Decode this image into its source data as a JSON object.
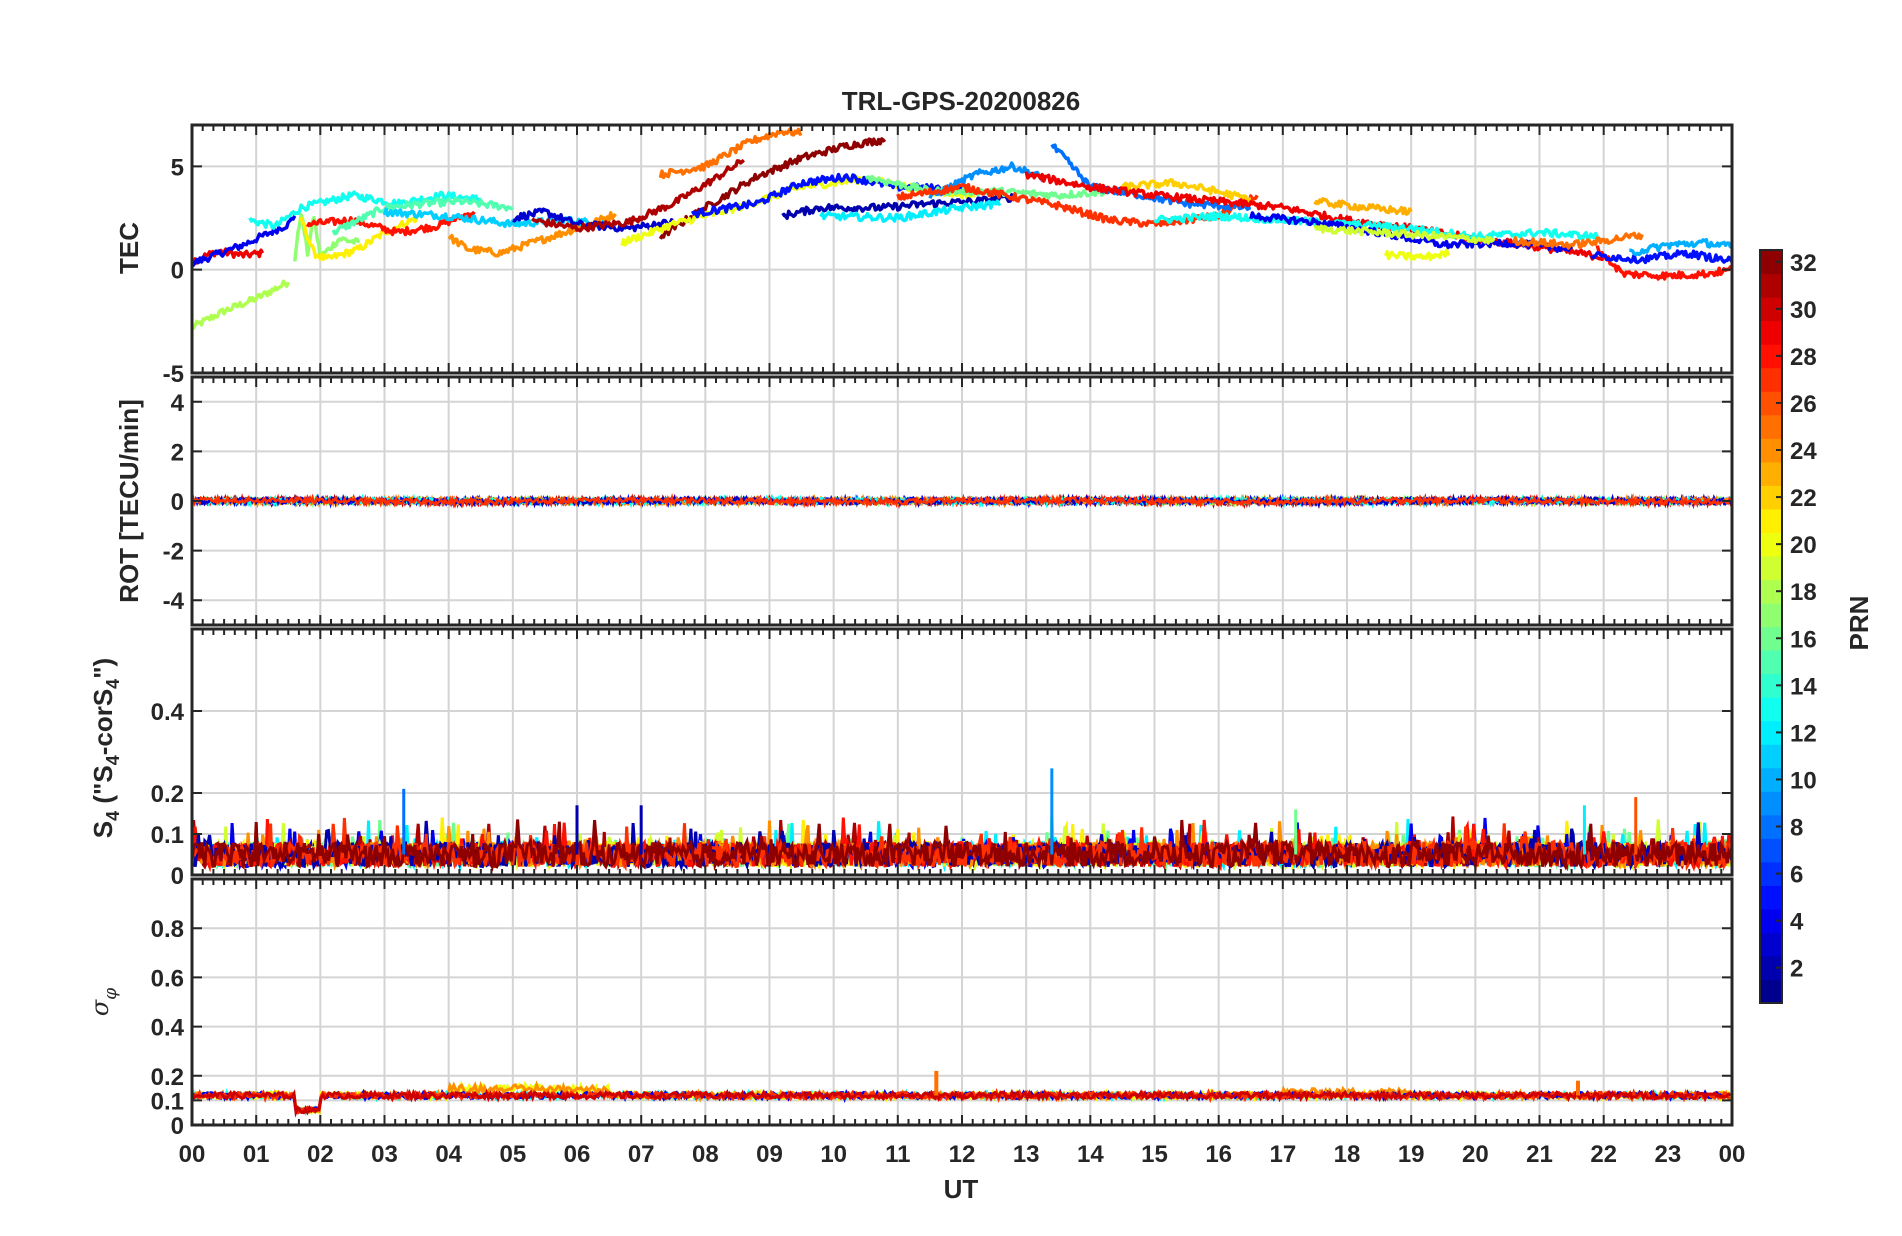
{
  "chart_data": {
    "type": "line",
    "title": "TRL-GPS-20200826",
    "xlabel": "UT",
    "x_ticks": [
      "00",
      "01",
      "02",
      "03",
      "04",
      "05",
      "06",
      "07",
      "08",
      "09",
      "10",
      "11",
      "12",
      "13",
      "14",
      "15",
      "16",
      "17",
      "18",
      "19",
      "20",
      "21",
      "22",
      "23",
      "00"
    ],
    "xlim": [
      0,
      24
    ],
    "panels": [
      {
        "id": "tec",
        "ylabel": "TEC",
        "ylim": [
          -5,
          7
        ],
        "yticks": [
          -5,
          0,
          5
        ],
        "ytick_labels": [
          "-5",
          "0",
          "5"
        ],
        "series": [
          {
            "prn": 18,
            "points": [
              [
                0.0,
                -2.8
              ],
              [
                0.5,
                -2.0
              ],
              [
                1.0,
                -1.4
              ],
              [
                1.5,
                -0.6
              ]
            ]
          },
          {
            "prn": 29,
            "points": [
              [
                0.0,
                0.4
              ],
              [
                0.4,
                0.9
              ],
              [
                0.8,
                0.7
              ],
              [
                1.1,
                0.8
              ]
            ]
          },
          {
            "prn": 4,
            "points": [
              [
                0.0,
                0.3
              ],
              [
                0.8,
                1.2
              ],
              [
                1.5,
                2.2
              ],
              [
                1.6,
                2.6
              ]
            ]
          },
          {
            "prn": 17,
            "points": [
              [
                1.6,
                0.5
              ],
              [
                1.7,
                2.8
              ],
              [
                1.8,
                0.8
              ],
              [
                1.9,
                2.6
              ],
              [
                2.0,
                0.6
              ],
              [
                2.3,
                1.5
              ],
              [
                2.6,
                1.3
              ]
            ]
          },
          {
            "prn": 21,
            "points": [
              [
                1.7,
                2.5
              ],
              [
                1.9,
                0.8
              ],
              [
                2.1,
                0.5
              ],
              [
                2.6,
                1.0
              ],
              [
                3.0,
                1.8
              ],
              [
                3.5,
                2.5
              ]
            ]
          },
          {
            "prn": 13,
            "points": [
              [
                0.9,
                2.4
              ],
              [
                1.3,
                2.1
              ],
              [
                1.7,
                3.0
              ],
              [
                2.5,
                3.6
              ],
              [
                3.2,
                3.2
              ],
              [
                3.9,
                3.6
              ],
              [
                4.5,
                3.4
              ]
            ]
          },
          {
            "prn": 28,
            "points": [
              [
                1.8,
                2.2
              ],
              [
                2.5,
                2.4
              ],
              [
                3.2,
                1.8
              ],
              [
                3.8,
                2.1
              ],
              [
                4.4,
                2.8
              ]
            ]
          },
          {
            "prn": 15,
            "points": [
              [
                2.2,
                1.8
              ],
              [
                3.0,
                3.0
              ],
              [
                3.6,
                3.2
              ],
              [
                4.2,
                3.3
              ],
              [
                5.0,
                3.0
              ]
            ]
          },
          {
            "prn": 24,
            "points": [
              [
                4.0,
                1.6
              ],
              [
                4.3,
                1.0
              ],
              [
                4.8,
                0.8
              ],
              [
                5.5,
                1.5
              ],
              [
                6.2,
                2.2
              ],
              [
                6.6,
                2.7
              ]
            ]
          },
          {
            "prn": 11,
            "points": [
              [
                3.0,
                2.8
              ],
              [
                4.0,
                2.6
              ],
              [
                5.0,
                2.2
              ],
              [
                5.8,
                2.4
              ],
              [
                6.5,
                2.2
              ]
            ]
          },
          {
            "prn": 3,
            "points": [
              [
                5.0,
                2.5
              ],
              [
                5.5,
                2.8
              ],
              [
                6.0,
                2.2
              ],
              [
                6.8,
                2.0
              ],
              [
                7.5,
                2.3
              ]
            ]
          },
          {
            "prn": 31,
            "points": [
              [
                5.3,
                2.4
              ],
              [
                6.0,
                2.0
              ],
              [
                6.8,
                2.3
              ],
              [
                7.5,
                3.2
              ],
              [
                8.2,
                4.5
              ],
              [
                8.6,
                5.3
              ]
            ]
          },
          {
            "prn": 32,
            "points": [
              [
                7.3,
                1.6
              ],
              [
                8.0,
                3.0
              ],
              [
                8.8,
                4.5
              ],
              [
                9.5,
                5.4
              ],
              [
                10.2,
                6.0
              ],
              [
                10.8,
                6.3
              ]
            ]
          },
          {
            "prn": 25,
            "points": [
              [
                7.3,
                4.6
              ],
              [
                8.0,
                5.0
              ],
              [
                8.7,
                6.2
              ],
              [
                9.2,
                6.7
              ],
              [
                9.5,
                6.6
              ]
            ]
          },
          {
            "prn": 20,
            "points": [
              [
                6.7,
                1.3
              ],
              [
                7.5,
                2.2
              ],
              [
                8.5,
                3.0
              ],
              [
                9.5,
                4.0
              ],
              [
                10.5,
                4.4
              ],
              [
                11.5,
                3.8
              ],
              [
                12.2,
                3.6
              ]
            ]
          },
          {
            "prn": 5,
            "points": [
              [
                7.8,
                2.7
              ],
              [
                8.8,
                3.2
              ],
              [
                9.5,
                4.2
              ],
              [
                10.2,
                4.5
              ],
              [
                11.0,
                4.0
              ],
              [
                12.0,
                3.9
              ]
            ]
          },
          {
            "prn": 2,
            "points": [
              [
                9.2,
                2.6
              ],
              [
                9.8,
                3.0
              ],
              [
                10.8,
                3.0
              ],
              [
                11.5,
                3.2
              ],
              [
                12.2,
                3.3
              ],
              [
                12.8,
                3.5
              ]
            ]
          },
          {
            "prn": 16,
            "points": [
              [
                10.5,
                4.5
              ],
              [
                11.5,
                3.8
              ],
              [
                12.5,
                3.8
              ],
              [
                13.5,
                3.6
              ],
              [
                14.3,
                3.8
              ]
            ]
          },
          {
            "prn": 9,
            "points": [
              [
                11.5,
                3.5
              ],
              [
                12.2,
                4.6
              ],
              [
                12.8,
                5.0
              ],
              [
                13.3,
                4.4
              ]
            ]
          },
          {
            "prn": 12,
            "points": [
              [
                9.8,
                2.6
              ],
              [
                11.0,
                2.5
              ],
              [
                12.0,
                3.0
              ],
              [
                12.6,
                3.2
              ]
            ]
          },
          {
            "prn": 27,
            "points": [
              [
                11.0,
                3.5
              ],
              [
                12.0,
                4.0
              ],
              [
                13.0,
                3.4
              ],
              [
                13.5,
                3.1
              ],
              [
                14.3,
                2.4
              ],
              [
                15.0,
                2.2
              ],
              [
                16.0,
                2.6
              ],
              [
                16.6,
                3.6
              ]
            ]
          },
          {
            "prn": 8,
            "points": [
              [
                13.4,
                6.0
              ],
              [
                13.6,
                5.4
              ],
              [
                14.0,
                4.0
              ],
              [
                14.8,
                3.6
              ],
              [
                15.5,
                3.2
              ],
              [
                16.5,
                3.0
              ]
            ]
          },
          {
            "prn": 22,
            "points": [
              [
                14.5,
                4.0
              ],
              [
                15.3,
                4.2
              ],
              [
                15.8,
                3.9
              ],
              [
                16.5,
                3.4
              ]
            ]
          },
          {
            "prn": 29,
            "points": [
              [
                13.0,
                4.6
              ],
              [
                14.0,
                4.0
              ],
              [
                15.0,
                3.6
              ],
              [
                16.0,
                3.3
              ],
              [
                17.0,
                3.0
              ],
              [
                18.0,
                2.4
              ],
              [
                19.0,
                2.0
              ],
              [
                20.0,
                1.5
              ],
              [
                21.0,
                1.1
              ],
              [
                22.0,
                0.6
              ]
            ]
          },
          {
            "prn": 13,
            "points": [
              [
                15.0,
                2.4
              ],
              [
                16.0,
                2.6
              ],
              [
                17.0,
                2.4
              ],
              [
                18.0,
                2.2
              ],
              [
                19.0,
                2.0
              ],
              [
                20.0,
                1.6
              ],
              [
                21.0,
                1.8
              ],
              [
                21.9,
                1.6
              ]
            ]
          },
          {
            "prn": 4,
            "points": [
              [
                16.5,
                2.6
              ],
              [
                17.5,
                2.3
              ],
              [
                18.5,
                1.8
              ],
              [
                19.5,
                1.2
              ],
              [
                20.5,
                1.3
              ],
              [
                21.5,
                1.0
              ]
            ]
          },
          {
            "prn": 23,
            "points": [
              [
                17.5,
                3.3
              ],
              [
                18.3,
                3.0
              ],
              [
                19.0,
                2.8
              ]
            ]
          },
          {
            "prn": 19,
            "points": [
              [
                17.5,
                2.0
              ],
              [
                18.5,
                1.8
              ],
              [
                19.5,
                1.6
              ],
              [
                20.3,
                1.4
              ]
            ]
          },
          {
            "prn": 20,
            "points": [
              [
                18.6,
                0.7
              ],
              [
                19.2,
                0.6
              ],
              [
                19.6,
                0.8
              ]
            ]
          },
          {
            "prn": 25,
            "points": [
              [
                20.6,
                1.4
              ],
              [
                21.5,
                1.2
              ],
              [
                22.0,
                1.4
              ],
              [
                22.6,
                1.7
              ]
            ]
          },
          {
            "prn": 28,
            "points": [
              [
                21.9,
                1.0
              ],
              [
                22.3,
                -0.2
              ],
              [
                23.0,
                -0.3
              ],
              [
                23.6,
                -0.2
              ],
              [
                24.0,
                0.0
              ]
            ]
          },
          {
            "prn": 5,
            "points": [
              [
                21.8,
                0.7
              ],
              [
                22.6,
                0.5
              ],
              [
                23.3,
                0.8
              ],
              [
                24.0,
                0.4
              ]
            ]
          },
          {
            "prn": 10,
            "points": [
              [
                22.4,
                0.8
              ],
              [
                23.0,
                1.2
              ],
              [
                23.6,
                1.3
              ],
              [
                24.0,
                1.1
              ]
            ]
          }
        ]
      },
      {
        "id": "rot",
        "ylabel": "ROT [TECU/min]",
        "ylim": [
          -5,
          5
        ],
        "yticks": [
          -4,
          -2,
          0,
          2,
          4
        ],
        "ytick_labels": [
          "-4",
          "-2",
          "0",
          "2",
          "4"
        ]
      },
      {
        "id": "s4",
        "ylabel": "S4 (\"S4-corS4\")",
        "ylim": [
          0,
          0.6
        ],
        "yticks": [
          0,
          0.1,
          0.2,
          0.4
        ],
        "ytick_labels": [
          "0",
          "0.1",
          "0.2",
          "0.4"
        ],
        "spikes": [
          {
            "x": 3.3,
            "y": 0.21,
            "prn": 8
          },
          {
            "x": 13.4,
            "y": 0.26,
            "prn": 9
          },
          {
            "x": 6.0,
            "y": 0.17,
            "prn": 2
          },
          {
            "x": 7.0,
            "y": 0.17,
            "prn": 2
          },
          {
            "x": 17.2,
            "y": 0.16,
            "prn": 16
          },
          {
            "x": 22.5,
            "y": 0.19,
            "prn": 26
          },
          {
            "x": 21.7,
            "y": 0.17,
            "prn": 12
          }
        ]
      },
      {
        "id": "sigphi",
        "ylabel": "σφ",
        "ylim": [
          0,
          1
        ],
        "yticks": [
          0,
          0.1,
          0.2,
          0.4,
          0.6,
          0.8
        ],
        "ytick_labels": [
          "0",
          "0.1",
          "0.2",
          "0.4",
          "0.6",
          "0.8"
        ],
        "spikes": [
          {
            "x": 11.6,
            "y": 0.22,
            "prn": 25
          },
          {
            "x": 21.6,
            "y": 0.18,
            "prn": 25
          }
        ]
      }
    ],
    "colorbar": {
      "label": "PRN",
      "range": [
        1,
        32
      ],
      "tick_labels": [
        "2",
        "4",
        "6",
        "8",
        "10",
        "12",
        "14",
        "16",
        "18",
        "20",
        "22",
        "24",
        "26",
        "28",
        "30",
        "32"
      ],
      "colormap": "jet",
      "levels": 32
    }
  }
}
